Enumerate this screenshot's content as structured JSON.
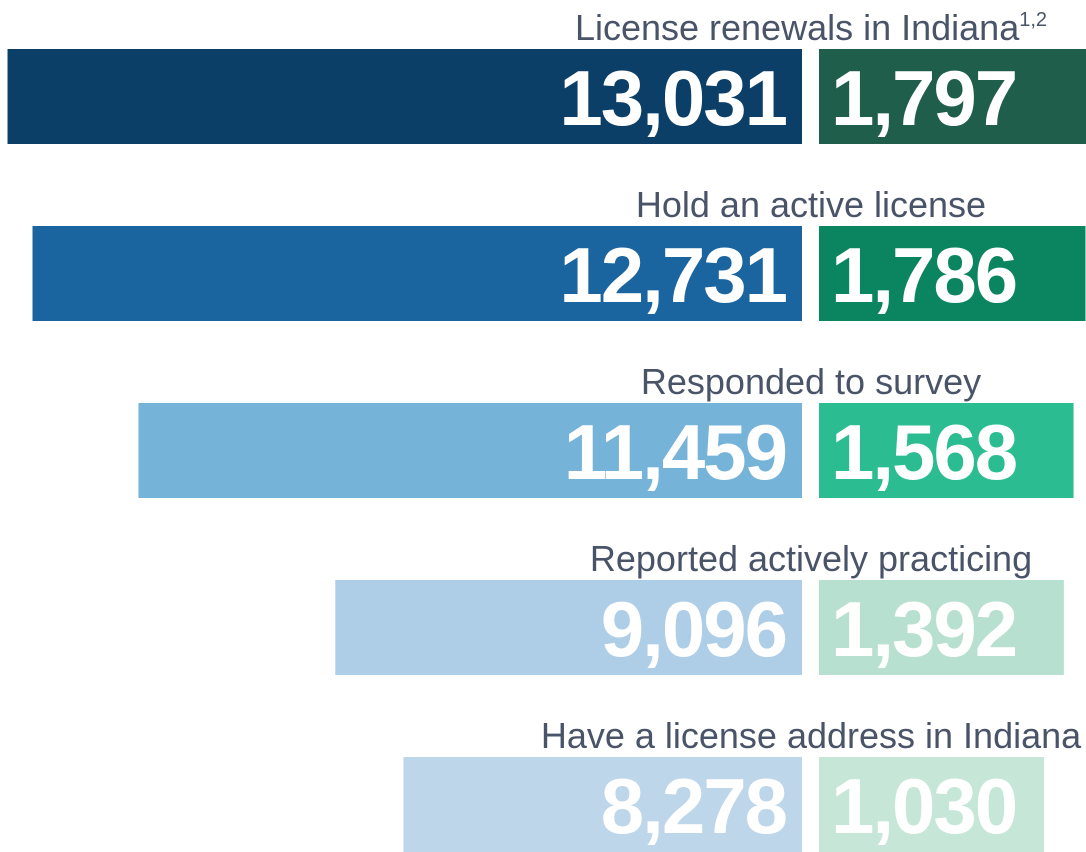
{
  "chart_data": {
    "type": "bar",
    "categories": [
      "License renewals in Indiana",
      "Hold an active license",
      "Responded to survey",
      "Reported actively practicing",
      "Have a license address in Indiana"
    ],
    "annotations": [
      "1,2"
    ],
    "series": [
      {
        "colors": [
          "#0b3f67",
          "#1a64a0",
          "#76b3d8",
          "#aecde6",
          "#bed6ea"
        ],
        "values": [
          13031,
          12731,
          11459,
          9096,
          8278
        ],
        "value_labels": [
          "13,031",
          "12,731",
          "11,459",
          "9,096",
          "8,278"
        ]
      },
      {
        "colors": [
          "#1f5e4b",
          "#0b8560",
          "#2bbd91",
          "#b8e0d0",
          "#c6e6d8"
        ],
        "values": [
          1797,
          1786,
          1568,
          1392,
          1030
        ],
        "value_labels": [
          "1,797",
          "1,786",
          "1,568",
          "1,392",
          "1,030"
        ]
      }
    ]
  }
}
